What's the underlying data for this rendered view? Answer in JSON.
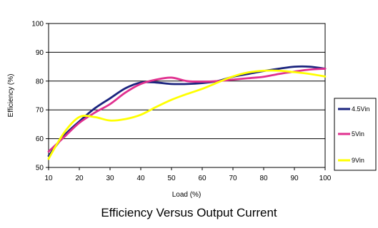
{
  "chart_data": {
    "type": "line",
    "title": "",
    "xlabel": "Load (%)",
    "ylabel": "Efficiency (%)",
    "xlim": [
      10,
      100
    ],
    "ylim": [
      50,
      100
    ],
    "x_ticks": [
      10,
      20,
      30,
      40,
      50,
      60,
      70,
      80,
      90,
      100
    ],
    "y_ticks": [
      50,
      60,
      70,
      80,
      90,
      100
    ],
    "grid": "horizontal",
    "legend_position": "right",
    "x": [
      10,
      15,
      20,
      25,
      30,
      35,
      40,
      45,
      50,
      55,
      60,
      65,
      70,
      75,
      80,
      85,
      90,
      95,
      100
    ],
    "series": [
      {
        "name": "4.5Vin",
        "color": "#1a237e",
        "values": [
          54,
          61,
          66,
          70.5,
          74,
          77.5,
          79.5,
          79.5,
          79,
          79,
          79.3,
          80,
          81.5,
          82.5,
          83.5,
          84.3,
          85,
          85,
          84.3
        ]
      },
      {
        "name": "5Vin",
        "color": "#e0308f",
        "values": [
          55.5,
          60.5,
          65.5,
          69,
          72,
          76,
          79,
          80.5,
          81.2,
          80,
          79.8,
          80,
          80.5,
          81,
          81.5,
          82.5,
          83.3,
          84,
          84.3
        ]
      },
      {
        "name": "9Vin",
        "color": "#ffff00",
        "values": [
          53,
          62,
          67.5,
          67.5,
          66.3,
          66.8,
          68.3,
          71,
          73.5,
          75.5,
          77.3,
          79.5,
          81.6,
          83,
          83.6,
          83.6,
          83.1,
          82.5,
          81.6
        ]
      }
    ]
  },
  "caption": "Efficiency Versus Output Current"
}
